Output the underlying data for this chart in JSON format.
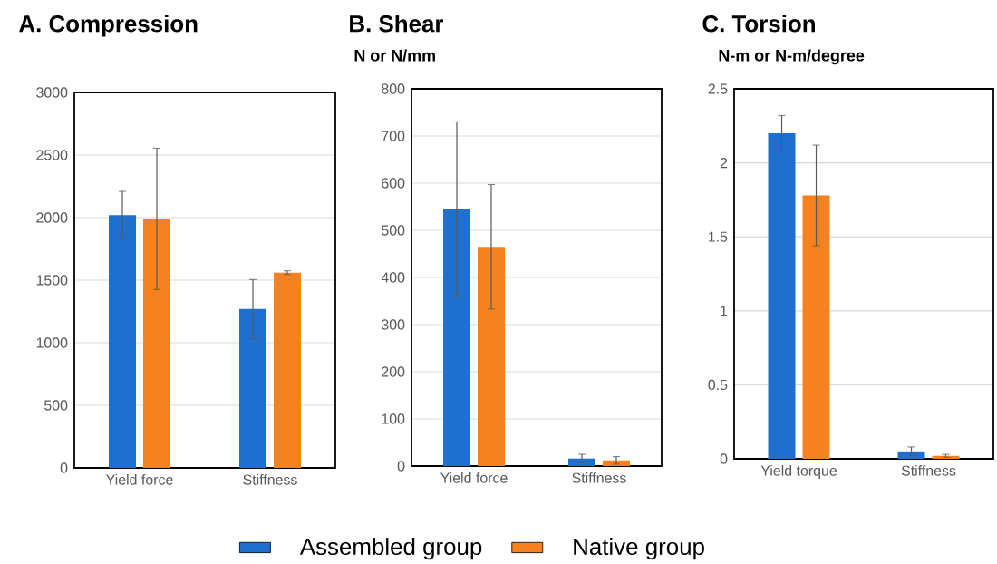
{
  "chart_data": [
    {
      "type": "bar",
      "title": "A. Compression",
      "categories": [
        "Yield force",
        "Stiffness"
      ],
      "series": [
        {
          "color": "#1f6fcf",
          "values": [
            2020,
            1270
          ],
          "errors": [
            190,
            235
          ]
        },
        {
          "color": "#f5821f",
          "values": [
            1990,
            1560
          ],
          "errors": [
            565,
            15
          ]
        }
      ],
      "ylim": [
        0,
        3000
      ],
      "yticks": [
        0,
        500,
        1000,
        1500,
        2000,
        2500,
        3000
      ],
      "grid": "y"
    },
    {
      "type": "bar",
      "title": "B. Shear",
      "subtitle": "N or N/mm",
      "categories": [
        "Yield force",
        "Stiffness"
      ],
      "series": [
        {
          "name": "Assembled group",
          "color": "#1f6fcf",
          "values": [
            545,
            16
          ],
          "errors": [
            185,
            9
          ]
        },
        {
          "name": "Native group",
          "color": "#f5821f",
          "values": [
            465,
            12
          ],
          "errors": [
            132,
            8
          ]
        }
      ],
      "ylim": [
        0,
        800
      ],
      "yticks": [
        0,
        100,
        200,
        300,
        400,
        500,
        600,
        700,
        800
      ],
      "grid": "y",
      "legend": "bottom"
    },
    {
      "type": "bar",
      "title": "C. Torsion",
      "subtitle": "N-m or N-m/degree",
      "categories": [
        "Yield torque",
        "Stiffness"
      ],
      "series": [
        {
          "color": "#1f6fcf",
          "values": [
            2.2,
            0.05
          ],
          "errors": [
            0.12,
            0.03
          ]
        },
        {
          "color": "#f5821f",
          "values": [
            1.78,
            0.02
          ],
          "errors": [
            0.34,
            0.01
          ]
        }
      ],
      "ylim": [
        0,
        2.5
      ],
      "yticks": [
        0,
        0.5,
        1,
        1.5,
        2,
        2.5
      ],
      "grid": "y"
    }
  ]
}
